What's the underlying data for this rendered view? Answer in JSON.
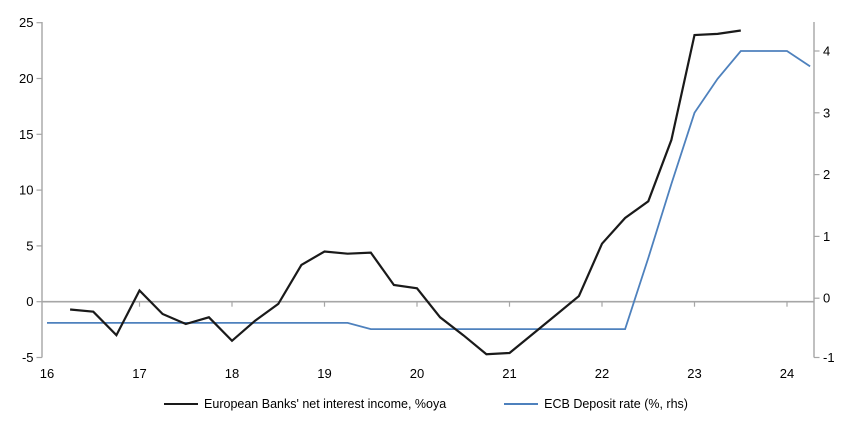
{
  "chart_data": {
    "type": "line",
    "title": "",
    "x_axis": {
      "tick_labels": [
        16,
        17,
        18,
        19,
        20,
        21,
        22,
        23,
        24
      ],
      "tick_marks_at": [
        17,
        18,
        19,
        20,
        21,
        22,
        23,
        24
      ],
      "min": 16,
      "max": 24.35,
      "axis_drawn_at_value": 0
    },
    "left_axis": {
      "tick_labels": [
        25,
        20,
        15,
        10,
        5,
        0,
        -5
      ],
      "min": -5,
      "max": 25,
      "for_series": "European Banks' net interest income, %oya"
    },
    "right_axis": {
      "tick_labels": [
        4,
        3,
        2,
        1,
        0,
        -1
      ],
      "min": -1,
      "max": 4,
      "for_series": "ECB Deposit rate (%, rhs)"
    },
    "grid": "horizontal zero line only",
    "legend_position": "bottom",
    "series": [
      {
        "name": "European Banks' net interest income, %oya",
        "axis": "left",
        "color": "#1a1a1a",
        "x": [
          16.25,
          16.5,
          16.75,
          17,
          17.25,
          17.5,
          17.75,
          18,
          18.25,
          18.5,
          18.75,
          19,
          19.25,
          19.5,
          19.75,
          20,
          20.25,
          20.5,
          20.75,
          21,
          21.25,
          21.5,
          21.75,
          22,
          22.25,
          22.5,
          22.75,
          23,
          23.25,
          23.5
        ],
        "values": [
          -0.7,
          -0.9,
          -3.0,
          1.0,
          -1.1,
          -2.0,
          -1.4,
          -3.5,
          -1.7,
          -0.2,
          3.3,
          4.5,
          4.3,
          4.4,
          1.5,
          1.2,
          -1.4,
          -3.0,
          -4.7,
          -4.6,
          -2.9,
          -1.2,
          0.5,
          5.2,
          7.5,
          9.0,
          14.5,
          23.9,
          24.0,
          24.3
        ]
      },
      {
        "name": "ECB Deposit rate (%, rhs)",
        "axis": "right",
        "color": "#4e81bd",
        "x": [
          16,
          16.25,
          16.5,
          16.75,
          17,
          17.25,
          17.5,
          17.75,
          18,
          18.25,
          18.5,
          18.75,
          19,
          19.25,
          19.5,
          19.75,
          20,
          20.25,
          20.5,
          20.75,
          21,
          21.25,
          21.5,
          21.75,
          22,
          22.25,
          22.5,
          22.75,
          23,
          23.25,
          23.5,
          23.75,
          24,
          24.25
        ],
        "values": [
          -0.4,
          -0.4,
          -0.4,
          -0.4,
          -0.4,
          -0.4,
          -0.4,
          -0.4,
          -0.4,
          -0.4,
          -0.4,
          -0.4,
          -0.4,
          -0.4,
          -0.5,
          -0.5,
          -0.5,
          -0.5,
          -0.5,
          -0.5,
          -0.5,
          -0.5,
          -0.5,
          -0.5,
          -0.5,
          -0.5,
          0.65,
          1.85,
          3.0,
          3.55,
          4.0,
          4.0,
          4.0,
          3.75
        ]
      }
    ]
  },
  "legend": {
    "items": [
      {
        "label": "European Banks' net interest income, %oya",
        "color": "#1a1a1a"
      },
      {
        "label": "ECB Deposit rate (%, rhs)",
        "color": "#4e81bd"
      }
    ]
  },
  "colors": {
    "axis": "#a6a6a6",
    "zero_line": "#a6a6a6",
    "text": "#000000",
    "background": "#ffffff"
  }
}
